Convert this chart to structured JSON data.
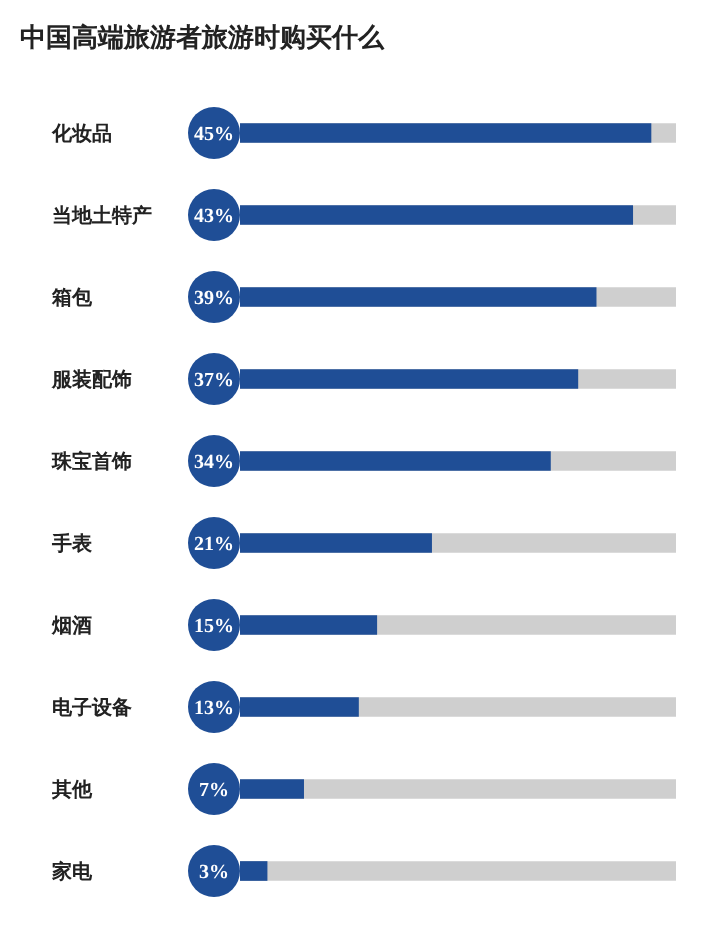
{
  "chart_data": {
    "type": "bar",
    "orientation": "horizontal",
    "title": "中国高端旅游者旅游时购买什么",
    "categories": [
      "化妆品",
      "当地土特产",
      "箱包",
      "服装配饰",
      "珠宝首饰",
      "手表",
      "烟酒",
      "电子设备",
      "其他",
      "家电"
    ],
    "values": [
      45,
      43,
      39,
      37,
      34,
      21,
      15,
      13,
      7,
      3
    ],
    "value_labels": [
      "45%",
      "43%",
      "39%",
      "37%",
      "34%",
      "21%",
      "15%",
      "13%",
      "7%",
      "3%"
    ],
    "color": "#1f4e96",
    "grid": false,
    "legend": false
  }
}
